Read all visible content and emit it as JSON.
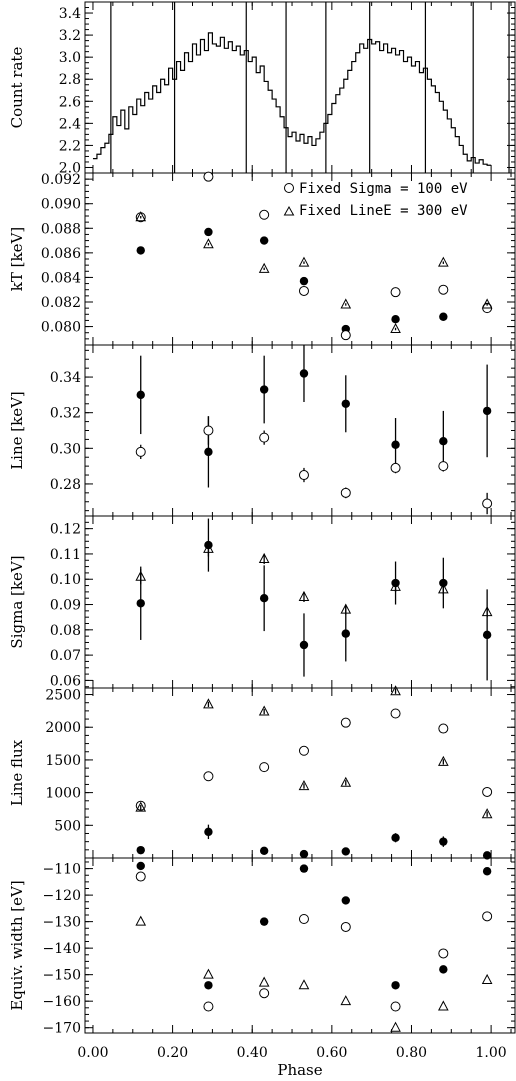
{
  "figure": {
    "xlabel": "Phase",
    "xticks": [
      0.0,
      0.2,
      0.4,
      0.6,
      0.8,
      1.0
    ],
    "xtick_labels": [
      "0.00",
      "0.20",
      "0.40",
      "0.60",
      "0.80",
      "1.00"
    ],
    "xlim": [
      -0.02,
      1.06
    ]
  },
  "legend": {
    "fixed_sigma": "Fixed Sigma = 100 eV",
    "fixed_linee": "Fixed LineE = 300 eV"
  },
  "chart_data": [
    {
      "type": "line",
      "ylabel": "Count rate",
      "ylim": [
        1.95,
        3.5
      ],
      "yticks": [
        2.0,
        2.2,
        2.4,
        2.6,
        2.8,
        3.0,
        3.2,
        3.4
      ],
      "ytick_labels": [
        "2.0",
        "2.2",
        "2.4",
        "2.6",
        "2.8",
        "3.0",
        "3.2",
        "3.4"
      ],
      "x": [
        0.005,
        0.015,
        0.025,
        0.035,
        0.045,
        0.055,
        0.065,
        0.075,
        0.085,
        0.095,
        0.105,
        0.115,
        0.125,
        0.135,
        0.145,
        0.155,
        0.165,
        0.175,
        0.185,
        0.195,
        0.205,
        0.215,
        0.225,
        0.235,
        0.245,
        0.255,
        0.265,
        0.275,
        0.285,
        0.295,
        0.305,
        0.315,
        0.325,
        0.335,
        0.345,
        0.355,
        0.365,
        0.375,
        0.385,
        0.395,
        0.405,
        0.415,
        0.425,
        0.435,
        0.445,
        0.455,
        0.465,
        0.475,
        0.485,
        0.495,
        0.505,
        0.515,
        0.525,
        0.535,
        0.545,
        0.555,
        0.565,
        0.575,
        0.585,
        0.595,
        0.605,
        0.615,
        0.625,
        0.635,
        0.645,
        0.655,
        0.665,
        0.675,
        0.685,
        0.695,
        0.705,
        0.715,
        0.725,
        0.735,
        0.745,
        0.755,
        0.765,
        0.775,
        0.785,
        0.795,
        0.805,
        0.815,
        0.825,
        0.835,
        0.845,
        0.855,
        0.865,
        0.875,
        0.885,
        0.895,
        0.905,
        0.915,
        0.925,
        0.935,
        0.945,
        0.955,
        0.965,
        0.975,
        0.985,
        0.995
      ],
      "values": [
        2.08,
        2.12,
        2.18,
        2.22,
        2.3,
        2.46,
        2.38,
        2.52,
        2.35,
        2.55,
        2.48,
        2.62,
        2.56,
        2.68,
        2.62,
        2.74,
        2.68,
        2.8,
        2.75,
        2.9,
        2.8,
        2.96,
        2.88,
        3.04,
        2.96,
        3.12,
        3.02,
        3.16,
        3.06,
        3.22,
        3.12,
        3.1,
        3.18,
        3.08,
        3.14,
        3.06,
        3.1,
        3.02,
        3.06,
        2.96,
        3.0,
        2.86,
        2.92,
        2.78,
        2.7,
        2.62,
        2.55,
        2.46,
        2.36,
        2.28,
        2.32,
        2.24,
        2.3,
        2.22,
        2.28,
        2.2,
        2.26,
        2.32,
        2.4,
        2.48,
        2.58,
        2.66,
        2.72,
        2.8,
        2.88,
        2.96,
        3.04,
        3.12,
        3.08,
        3.16,
        3.12,
        3.14,
        3.06,
        3.12,
        3.04,
        3.08,
        3.02,
        3.06,
        2.96,
        3.0,
        2.92,
        2.96,
        2.86,
        2.9,
        2.8,
        2.74,
        2.68,
        2.6,
        2.52,
        2.44,
        2.36,
        2.28,
        2.2,
        2.12,
        2.06,
        2.09,
        2.04,
        2.07,
        2.03,
        2.02
      ],
      "vlines": [
        0.045,
        0.205,
        0.385,
        0.485,
        0.585,
        0.695,
        0.835,
        0.955,
        1.045
      ]
    },
    {
      "type": "scatter",
      "ylabel": "kT [keV]",
      "ylim": [
        0.0785,
        0.0925
      ],
      "yticks": [
        0.08,
        0.082,
        0.084,
        0.086,
        0.088,
        0.09,
        0.092
      ],
      "ytick_labels": [
        "0.080",
        "0.082",
        "0.084",
        "0.086",
        "0.088",
        "0.090",
        "0.092"
      ],
      "x": [
        0.12,
        0.29,
        0.43,
        0.53,
        0.635,
        0.76,
        0.88,
        0.99
      ],
      "series": [
        {
          "marker": "filled-circle",
          "values": [
            0.0862,
            0.0877,
            0.087,
            0.0837,
            0.0798,
            0.0806,
            0.0808,
            0.0816
          ],
          "errors": [
            0.0001,
            0.0001,
            0.0001,
            0.0001,
            0.0001,
            0.0001,
            0.0001,
            0.0002
          ]
        },
        {
          "marker": "open-circle",
          "values": [
            0.0889,
            0.0922,
            0.0891,
            0.0829,
            0.0793,
            0.0828,
            0.083,
            0.0815
          ],
          "errors": [
            0.0001,
            0.0001,
            0.0001,
            0.0001,
            0.0001,
            0.0001,
            0.0001,
            0.0001
          ]
        },
        {
          "marker": "open-triangle",
          "values": [
            0.0889,
            0.0867,
            0.0847,
            0.0852,
            0.0818,
            0.0798,
            0.0852,
            0.0818
          ],
          "errors": [
            0.0001,
            0.0001,
            0.0001,
            0.0001,
            0.0001,
            0.0001,
            0.0001,
            0.0001
          ]
        }
      ]
    },
    {
      "type": "scatter",
      "ylabel": "Line [keV]",
      "ylim": [
        0.262,
        0.358
      ],
      "yticks": [
        0.28,
        0.3,
        0.32,
        0.34
      ],
      "ytick_labels": [
        "0.28",
        "0.30",
        "0.32",
        "0.34"
      ],
      "x": [
        0.12,
        0.29,
        0.43,
        0.53,
        0.635,
        0.76,
        0.88,
        0.99
      ],
      "series": [
        {
          "marker": "filled-circle",
          "values": [
            0.33,
            0.298,
            0.333,
            0.342,
            0.325,
            0.302,
            0.304,
            0.321
          ],
          "errors": [
            0.022,
            0.02,
            0.019,
            0.016,
            0.016,
            0.015,
            0.017,
            0.026
          ]
        },
        {
          "marker": "open-circle",
          "values": [
            0.298,
            0.31,
            0.306,
            0.285,
            0.275,
            0.289,
            0.29,
            0.269
          ],
          "errors": [
            0.004,
            0.008,
            0.004,
            0.004,
            0.003,
            0.003,
            0.003,
            0.006
          ]
        }
      ]
    },
    {
      "type": "scatter",
      "ylabel": "Sigma [keV]",
      "ylim": [
        0.057,
        0.125
      ],
      "yticks": [
        0.06,
        0.07,
        0.08,
        0.09,
        0.1,
        0.11,
        0.12
      ],
      "ytick_labels": [
        "0.06",
        "0.07",
        "0.08",
        "0.09",
        "0.10",
        "0.11",
        "0.12"
      ],
      "x": [
        0.12,
        0.29,
        0.43,
        0.53,
        0.635,
        0.76,
        0.88,
        0.99
      ],
      "series": [
        {
          "marker": "filled-circle",
          "values": [
            0.0905,
            0.1135,
            0.0925,
            0.074,
            0.0785,
            0.0985,
            0.0985,
            0.078
          ],
          "errors": [
            0.0145,
            0.0105,
            0.013,
            0.0125,
            0.011,
            0.0085,
            0.01,
            0.018
          ]
        },
        {
          "marker": "open-triangle",
          "values": [
            0.101,
            0.112,
            0.108,
            0.093,
            0.088,
            0.097,
            0.096,
            0.087
          ],
          "errors": [
            0.003,
            0.003,
            0.002,
            0.002,
            0.002,
            0.002,
            0.002,
            0.002
          ]
        }
      ]
    },
    {
      "type": "scatter",
      "ylabel": "Line flux",
      "ylim": [
        0,
        2600
      ],
      "yticks": [
        500,
        1000,
        1500,
        2000,
        2500
      ],
      "ytick_labels": [
        "500",
        "1000",
        "1500",
        "2000",
        "2500"
      ],
      "x": [
        0.12,
        0.29,
        0.43,
        0.53,
        0.635,
        0.76,
        0.88,
        0.99
      ],
      "series": [
        {
          "marker": "filled-circle",
          "values": [
            120,
            400,
            110,
            60,
            100,
            310,
            250,
            40
          ],
          "errors": [
            40,
            110,
            40,
            30,
            40,
            70,
            80,
            30
          ]
        },
        {
          "marker": "open-circle",
          "values": [
            800,
            1250,
            1390,
            1640,
            2070,
            2210,
            1980,
            1010
          ],
          "errors": [
            50,
            50,
            50,
            50,
            50,
            50,
            50,
            50
          ]
        },
        {
          "marker": "open-triangle",
          "values": [
            770,
            2350,
            2240,
            1100,
            1150,
            2550,
            1470,
            670
          ],
          "errors": [
            40,
            40,
            40,
            40,
            40,
            40,
            40,
            40
          ]
        }
      ]
    },
    {
      "type": "scatter",
      "ylabel": "Equiv. width [eV]",
      "ylim": [
        -172,
        -106
      ],
      "yticks": [
        -170,
        -160,
        -150,
        -140,
        -130,
        -120,
        -110
      ],
      "ytick_labels": [
        "−170",
        "−160",
        "−150",
        "−140",
        "−130",
        "−120",
        "−110"
      ],
      "x": [
        0.12,
        0.29,
        0.43,
        0.53,
        0.635,
        0.76,
        0.88,
        0.99
      ],
      "series": [
        {
          "marker": "filled-circle",
          "values": [
            -109,
            -154,
            -130,
            -110,
            -122,
            -154,
            -148,
            -111
          ]
        },
        {
          "marker": "open-circle",
          "values": [
            -113,
            -162,
            -157,
            -129,
            -132,
            -162,
            -142,
            -128
          ]
        },
        {
          "marker": "open-triangle",
          "values": [
            -130,
            -150,
            -153,
            -154,
            -160,
            -170,
            -162,
            -152
          ]
        }
      ]
    }
  ]
}
